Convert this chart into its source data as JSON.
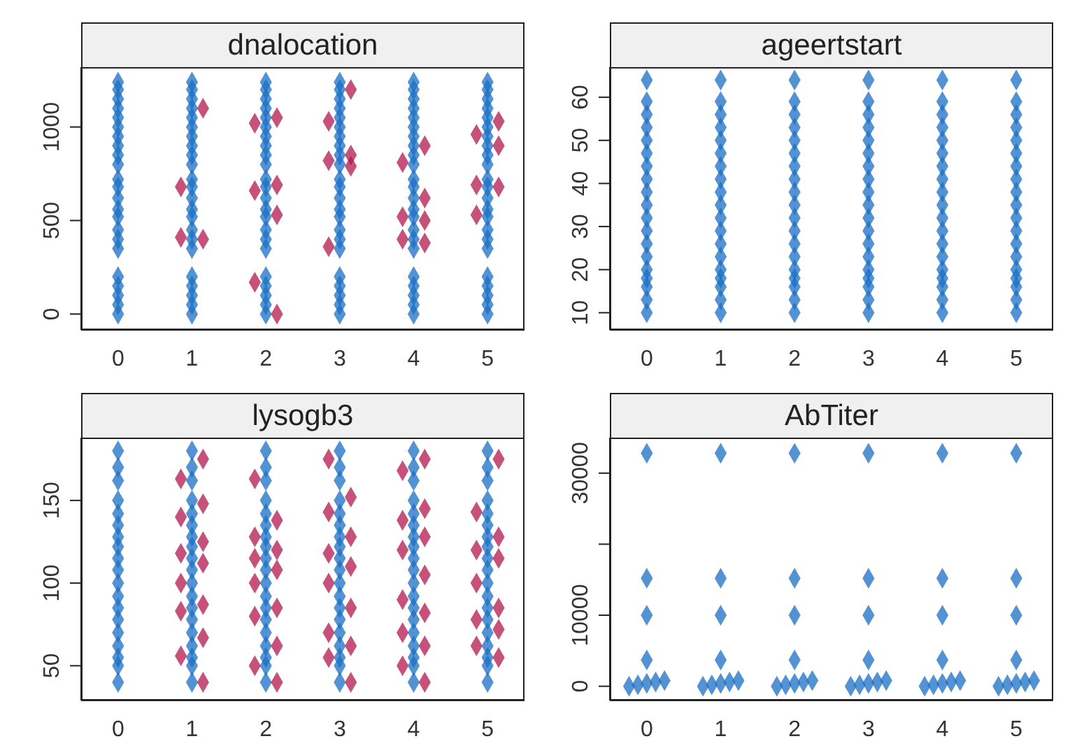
{
  "chart_data": [
    {
      "type": "scatter",
      "title": "dnalocation",
      "marker": "diamond",
      "xlim": [
        -0.5,
        5.5
      ],
      "xticks": [
        0,
        1,
        2,
        3,
        4,
        5
      ],
      "ylim": [
        -85,
        1320
      ],
      "yticks": [
        0,
        500,
        1000
      ],
      "series": [
        {
          "color": "#1a6fc4",
          "x": [
            0,
            0,
            0,
            0,
            0,
            0,
            0,
            0,
            0,
            0,
            0,
            0,
            0,
            0,
            0,
            0,
            0,
            0,
            0,
            0,
            0,
            0,
            0,
            1,
            1,
            1,
            1,
            1,
            1,
            1,
            1,
            1,
            1,
            1,
            1,
            1,
            1,
            1,
            1,
            1,
            1,
            1,
            1,
            1,
            1,
            1,
            2,
            2,
            2,
            2,
            2,
            2,
            2,
            2,
            2,
            2,
            2,
            2,
            2,
            2,
            2,
            2,
            2,
            2,
            2,
            2,
            2,
            2,
            2,
            3,
            3,
            3,
            3,
            3,
            3,
            3,
            3,
            3,
            3,
            3,
            3,
            3,
            3,
            3,
            3,
            3,
            3,
            3,
            3,
            3,
            3,
            3,
            4,
            4,
            4,
            4,
            4,
            4,
            4,
            4,
            4,
            4,
            4,
            4,
            4,
            4,
            4,
            4,
            4,
            4,
            4,
            4,
            4,
            4,
            4,
            5,
            5,
            5,
            5,
            5,
            5,
            5,
            5,
            5,
            5,
            5,
            5,
            5,
            5,
            5,
            5,
            5,
            5,
            5,
            5,
            5,
            5,
            5
          ],
          "values": [
            0,
            50,
            100,
            150,
            200,
            350,
            400,
            450,
            520,
            560,
            620,
            680,
            720,
            800,
            850,
            900,
            950,
            1000,
            1050,
            1100,
            1150,
            1200,
            1240,
            0,
            50,
            100,
            150,
            200,
            350,
            400,
            450,
            520,
            560,
            620,
            680,
            720,
            800,
            850,
            900,
            950,
            1000,
            1050,
            1100,
            1150,
            1200,
            1240,
            0,
            50,
            100,
            150,
            200,
            350,
            400,
            450,
            520,
            560,
            620,
            680,
            720,
            800,
            850,
            900,
            950,
            1000,
            1050,
            1100,
            1150,
            1200,
            1240,
            0,
            50,
            100,
            150,
            200,
            350,
            400,
            450,
            520,
            560,
            620,
            680,
            720,
            800,
            850,
            900,
            950,
            1000,
            1050,
            1100,
            1150,
            1200,
            1240,
            0,
            50,
            100,
            150,
            200,
            350,
            400,
            450,
            520,
            560,
            620,
            680,
            720,
            800,
            850,
            900,
            950,
            1000,
            1050,
            1100,
            1150,
            1200,
            1240,
            0,
            50,
            100,
            150,
            200,
            350,
            400,
            450,
            520,
            560,
            620,
            680,
            720,
            800,
            850,
            900,
            950,
            1000,
            1050,
            1100,
            1150,
            1200,
            1240
          ]
        },
        {
          "color": "#b3174f",
          "x": [
            1.15,
            0.85,
            1.15,
            0.85,
            2.15,
            1.85,
            2.15,
            1.85,
            2.15,
            1.85,
            2.15,
            3.15,
            2.85,
            3.15,
            2.85,
            3.15,
            2.85,
            4.15,
            3.85,
            4.15,
            3.85,
            4.15,
            3.85,
            4.15,
            5.15,
            4.85,
            5.15,
            4.85,
            5.15,
            4.85
          ],
          "values": [
            1100,
            680,
            400,
            410,
            1050,
            1020,
            690,
            660,
            530,
            170,
            0,
            1200,
            1030,
            850,
            820,
            790,
            360,
            900,
            810,
            620,
            520,
            500,
            400,
            380,
            1030,
            960,
            900,
            690,
            680,
            530
          ]
        }
      ]
    },
    {
      "type": "scatter",
      "title": "ageertstart",
      "marker": "diamond",
      "xlim": [
        -0.5,
        5.5
      ],
      "xticks": [
        0,
        1,
        2,
        3,
        4,
        5
      ],
      "ylim": [
        6,
        67
      ],
      "yticks": [
        10,
        20,
        30,
        40,
        50,
        60
      ],
      "series": [
        {
          "color": "#1a6fc4",
          "x": [
            0,
            0,
            0,
            0,
            0,
            0,
            0,
            0,
            0,
            0,
            0,
            0,
            0,
            0,
            0,
            0,
            0,
            0,
            0,
            1,
            1,
            1,
            1,
            1,
            1,
            1,
            1,
            1,
            1,
            1,
            1,
            1,
            1,
            1,
            1,
            1,
            1,
            1,
            2,
            2,
            2,
            2,
            2,
            2,
            2,
            2,
            2,
            2,
            2,
            2,
            2,
            2,
            2,
            2,
            2,
            2,
            2,
            3,
            3,
            3,
            3,
            3,
            3,
            3,
            3,
            3,
            3,
            3,
            3,
            3,
            3,
            3,
            3,
            3,
            3,
            3,
            4,
            4,
            4,
            4,
            4,
            4,
            4,
            4,
            4,
            4,
            4,
            4,
            4,
            4,
            4,
            4,
            4,
            4,
            4,
            5,
            5,
            5,
            5,
            5,
            5,
            5,
            5,
            5,
            5,
            5,
            5,
            5,
            5,
            5,
            5,
            5,
            5,
            5
          ],
          "values": [
            10,
            13,
            16,
            18,
            20,
            23,
            26,
            29,
            32,
            35,
            38,
            41,
            44,
            47,
            50,
            53,
            56,
            59,
            64,
            10,
            13,
            16,
            18,
            20,
            23,
            26,
            29,
            32,
            35,
            38,
            41,
            44,
            47,
            50,
            53,
            56,
            59,
            64,
            10,
            13,
            16,
            18,
            20,
            23,
            26,
            29,
            32,
            35,
            38,
            41,
            44,
            47,
            50,
            53,
            56,
            59,
            64,
            10,
            13,
            16,
            18,
            20,
            23,
            26,
            29,
            32,
            35,
            38,
            41,
            44,
            47,
            50,
            53,
            56,
            59,
            64,
            10,
            13,
            16,
            18,
            20,
            23,
            26,
            29,
            32,
            35,
            38,
            41,
            44,
            47,
            50,
            53,
            56,
            59,
            64,
            10,
            13,
            16,
            18,
            20,
            23,
            26,
            29,
            32,
            35,
            38,
            41,
            44,
            47,
            50,
            53,
            56,
            59,
            64
          ]
        }
      ]
    },
    {
      "type": "scatter",
      "title": "lysogb3",
      "marker": "diamond",
      "xlim": [
        -0.5,
        5.5
      ],
      "xticks": [
        0,
        1,
        2,
        3,
        4,
        5
      ],
      "ylim": [
        29,
        188
      ],
      "yticks": [
        50,
        100,
        150
      ],
      "series": [
        {
          "color": "#1a6fc4",
          "x": [
            0,
            0,
            0,
            0,
            0,
            0,
            0,
            0,
            0,
            0,
            0,
            0,
            0,
            0,
            0,
            0,
            0,
            0,
            0,
            1,
            1,
            1,
            1,
            1,
            1,
            1,
            1,
            1,
            1,
            1,
            1,
            1,
            1,
            1,
            1,
            1,
            1,
            1,
            2,
            2,
            2,
            2,
            2,
            2,
            2,
            2,
            2,
            2,
            2,
            2,
            2,
            2,
            2,
            2,
            2,
            2,
            2,
            3,
            3,
            3,
            3,
            3,
            3,
            3,
            3,
            3,
            3,
            3,
            3,
            3,
            3,
            3,
            3,
            3,
            3,
            3,
            4,
            4,
            4,
            4,
            4,
            4,
            4,
            4,
            4,
            4,
            4,
            4,
            4,
            4,
            4,
            4,
            4,
            4,
            4,
            5,
            5,
            5,
            5,
            5,
            5,
            5,
            5,
            5,
            5,
            5,
            5,
            5,
            5,
            5,
            5,
            5,
            5,
            5
          ],
          "values": [
            40,
            50,
            55,
            62,
            70,
            78,
            85,
            92,
            100,
            108,
            115,
            122,
            128,
            135,
            142,
            150,
            162,
            170,
            180,
            40,
            50,
            55,
            62,
            70,
            78,
            85,
            92,
            100,
            108,
            115,
            122,
            128,
            135,
            142,
            150,
            162,
            170,
            180,
            40,
            50,
            55,
            62,
            70,
            78,
            85,
            92,
            100,
            108,
            115,
            122,
            128,
            135,
            142,
            150,
            162,
            170,
            180,
            40,
            50,
            55,
            62,
            70,
            78,
            85,
            92,
            100,
            108,
            115,
            122,
            128,
            135,
            142,
            150,
            162,
            170,
            180,
            40,
            50,
            55,
            62,
            70,
            78,
            85,
            92,
            100,
            108,
            115,
            122,
            128,
            135,
            142,
            150,
            162,
            170,
            180,
            40,
            50,
            55,
            62,
            70,
            78,
            85,
            92,
            100,
            108,
            115,
            122,
            128,
            135,
            142,
            150,
            162,
            170,
            180
          ]
        },
        {
          "color": "#b3174f",
          "x": [
            1.15,
            0.85,
            1.15,
            0.85,
            1.15,
            0.85,
            1.15,
            0.85,
            1.15,
            0.85,
            1.15,
            0.85,
            1.15,
            2.15,
            1.85,
            2.15,
            1.85,
            2.15,
            1.85,
            2.15,
            1.85,
            2.15,
            1.85,
            2.15,
            1.85,
            3.15,
            2.85,
            3.15,
            2.85,
            3.15,
            2.85,
            3.15,
            2.85,
            3.15,
            2.85,
            3.15,
            2.85,
            4.15,
            3.85,
            4.15,
            3.85,
            4.15,
            3.85,
            4.15,
            3.85,
            4.15,
            3.85,
            4.15,
            3.85,
            4.15,
            5.15,
            4.85,
            5.15,
            4.85,
            5.15,
            4.85,
            5.15,
            4.85,
            5.15,
            4.85,
            5.15
          ],
          "values": [
            40,
            56,
            67,
            83,
            87,
            100,
            112,
            118,
            125,
            140,
            148,
            163,
            175,
            40,
            50,
            62,
            80,
            85,
            100,
            108,
            115,
            120,
            128,
            138,
            163,
            40,
            55,
            62,
            70,
            85,
            100,
            110,
            118,
            128,
            143,
            152,
            175,
            40,
            50,
            62,
            70,
            82,
            90,
            105,
            120,
            128,
            138,
            145,
            168,
            175,
            55,
            62,
            72,
            78,
            85,
            100,
            115,
            120,
            128,
            143,
            175
          ]
        }
      ]
    },
    {
      "type": "scatter",
      "title": "AbTiter",
      "marker": "diamond",
      "xlim": [
        -0.5,
        5.5
      ],
      "xticks": [
        0,
        1,
        2,
        3,
        4,
        5
      ],
      "ylim": [
        -2000,
        35000
      ],
      "yticks": [
        0,
        10000,
        {
          "value": 20000,
          "label": null
        },
        30000
      ],
      "series": [
        {
          "color": "#1a6fc4",
          "x": [
            -0.24,
            -0.12,
            0,
            0.12,
            0.24,
            0,
            0,
            0,
            0,
            0.76,
            0.88,
            1,
            1.12,
            1.24,
            1,
            1,
            1,
            1,
            1.76,
            1.88,
            2,
            2.12,
            2.24,
            2,
            2,
            2,
            2,
            2.76,
            2.88,
            3,
            3.12,
            3.24,
            3,
            3,
            3,
            3,
            3.76,
            3.88,
            4,
            4.12,
            4.24,
            4,
            4,
            4,
            4,
            4.76,
            4.88,
            5,
            5.12,
            5.24,
            5,
            5,
            5,
            5
          ],
          "values": [
            0,
            200,
            400,
            600,
            800,
            3700,
            10000,
            15200,
            32800,
            0,
            200,
            400,
            600,
            800,
            3700,
            10000,
            15200,
            32800,
            0,
            200,
            400,
            600,
            800,
            3700,
            10000,
            15200,
            32800,
            0,
            200,
            400,
            600,
            800,
            3700,
            10000,
            15200,
            32800,
            0,
            200,
            400,
            600,
            800,
            3700,
            10000,
            15200,
            32800,
            0,
            200,
            400,
            600,
            800,
            3700,
            10000,
            15200,
            32800
          ]
        }
      ]
    }
  ]
}
